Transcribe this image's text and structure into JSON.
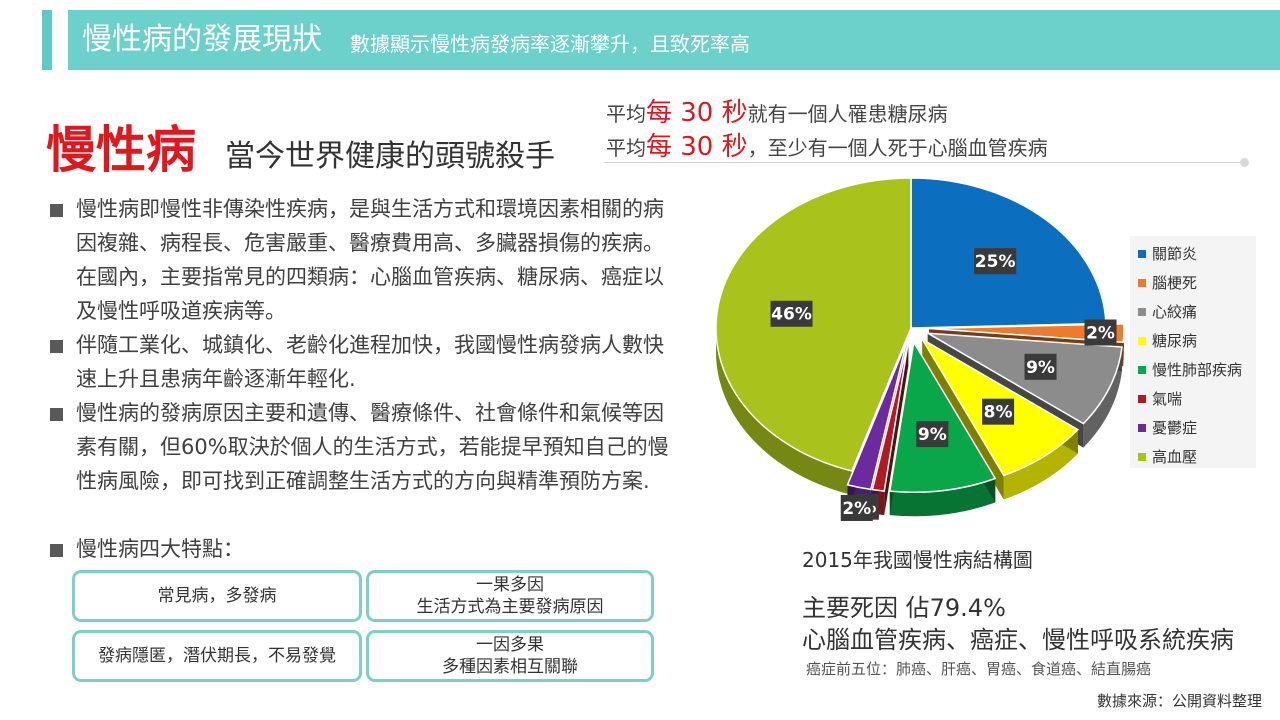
{
  "header": {
    "title": "慢性病的發展現狀",
    "subtitle": "數據顯示慢性病發病率逐漸攀升，且致死率高"
  },
  "stats": [
    {
      "prefix": "平均",
      "highlight": "每 30 秒",
      "suffix": "就有一個人罹患糖尿病"
    },
    {
      "prefix": "平均",
      "highlight": "每 30 秒",
      "suffix": "，至少有一個人死于心腦血管疾病"
    }
  ],
  "heading": {
    "main": "慢性病",
    "sub": "當今世界健康的頭號殺手"
  },
  "bullets": [
    "慢性病即慢性非傳染性疾病，是與生活方式和環境因素相關的病因複雜、病程長、危害嚴重、醫療費用高、多臟器損傷的疾病。 在國內，主要指常見的四類病：心腦血管疾病、糖尿病、癌症以及慢性呼吸道疾病等。",
    "伴隨工業化、城鎮化、老齡化進程加快，我國慢性病發病人數快速上升且患病年齡逐漸年輕化.",
    "慢性病的發病原因主要和遺傳、醫療條件、社會條件和氣候等因素有關，但60%取決於個人的生活方式，若能提早預知自己的慢性病風險，即可找到正確調整生活方式的方向與精準預防方案.",
    "慢性病四大特點："
  ],
  "features": [
    {
      "line1": "常見病，多發病",
      "line2": ""
    },
    {
      "line1": "一果多因",
      "line2": "生活方式為主要發病原因"
    },
    {
      "line1": "發病隱匿，潛伏期長，不易發覺",
      "line2": ""
    },
    {
      "line1": "一因多果",
      "line2": "多種因素相互關聯"
    }
  ],
  "chart_data": {
    "type": "pie",
    "title": "2015年我國慢性病結構圖",
    "legend_position": "right",
    "categories": [
      "關節炎",
      "腦梗死",
      "心絞痛",
      "糖尿病",
      "慢性肺部疾病",
      "氣喘",
      "憂鬱症",
      "高血壓"
    ],
    "values": [
      25,
      2,
      9,
      8,
      9,
      1,
      2,
      46
    ],
    "data_labels": [
      "25%",
      "2%",
      "9%",
      "8%",
      "9%",
      "%",
      "2%",
      "46%"
    ],
    "colors": [
      "#0b6ebe",
      "#ee7a2e",
      "#8c8c8c",
      "#ffff00",
      "#0aa64a",
      "#b01b22",
      "#6b2a9e",
      "#a9c21c"
    ],
    "exploded": [
      "腦梗死",
      "心絞痛",
      "糖尿病",
      "慢性肺部疾病",
      "氣喘",
      "憂鬱症"
    ]
  },
  "summary": {
    "main_cause": "主要死因 佔79.4%",
    "diseases": "心腦血管疾病、癌症、慢性呼吸系統疾病",
    "top5": "癌症前五位：肺癌、肝癌、胃癌、食道癌、結直腸癌"
  },
  "source": "數據來源：公開資料整理"
}
